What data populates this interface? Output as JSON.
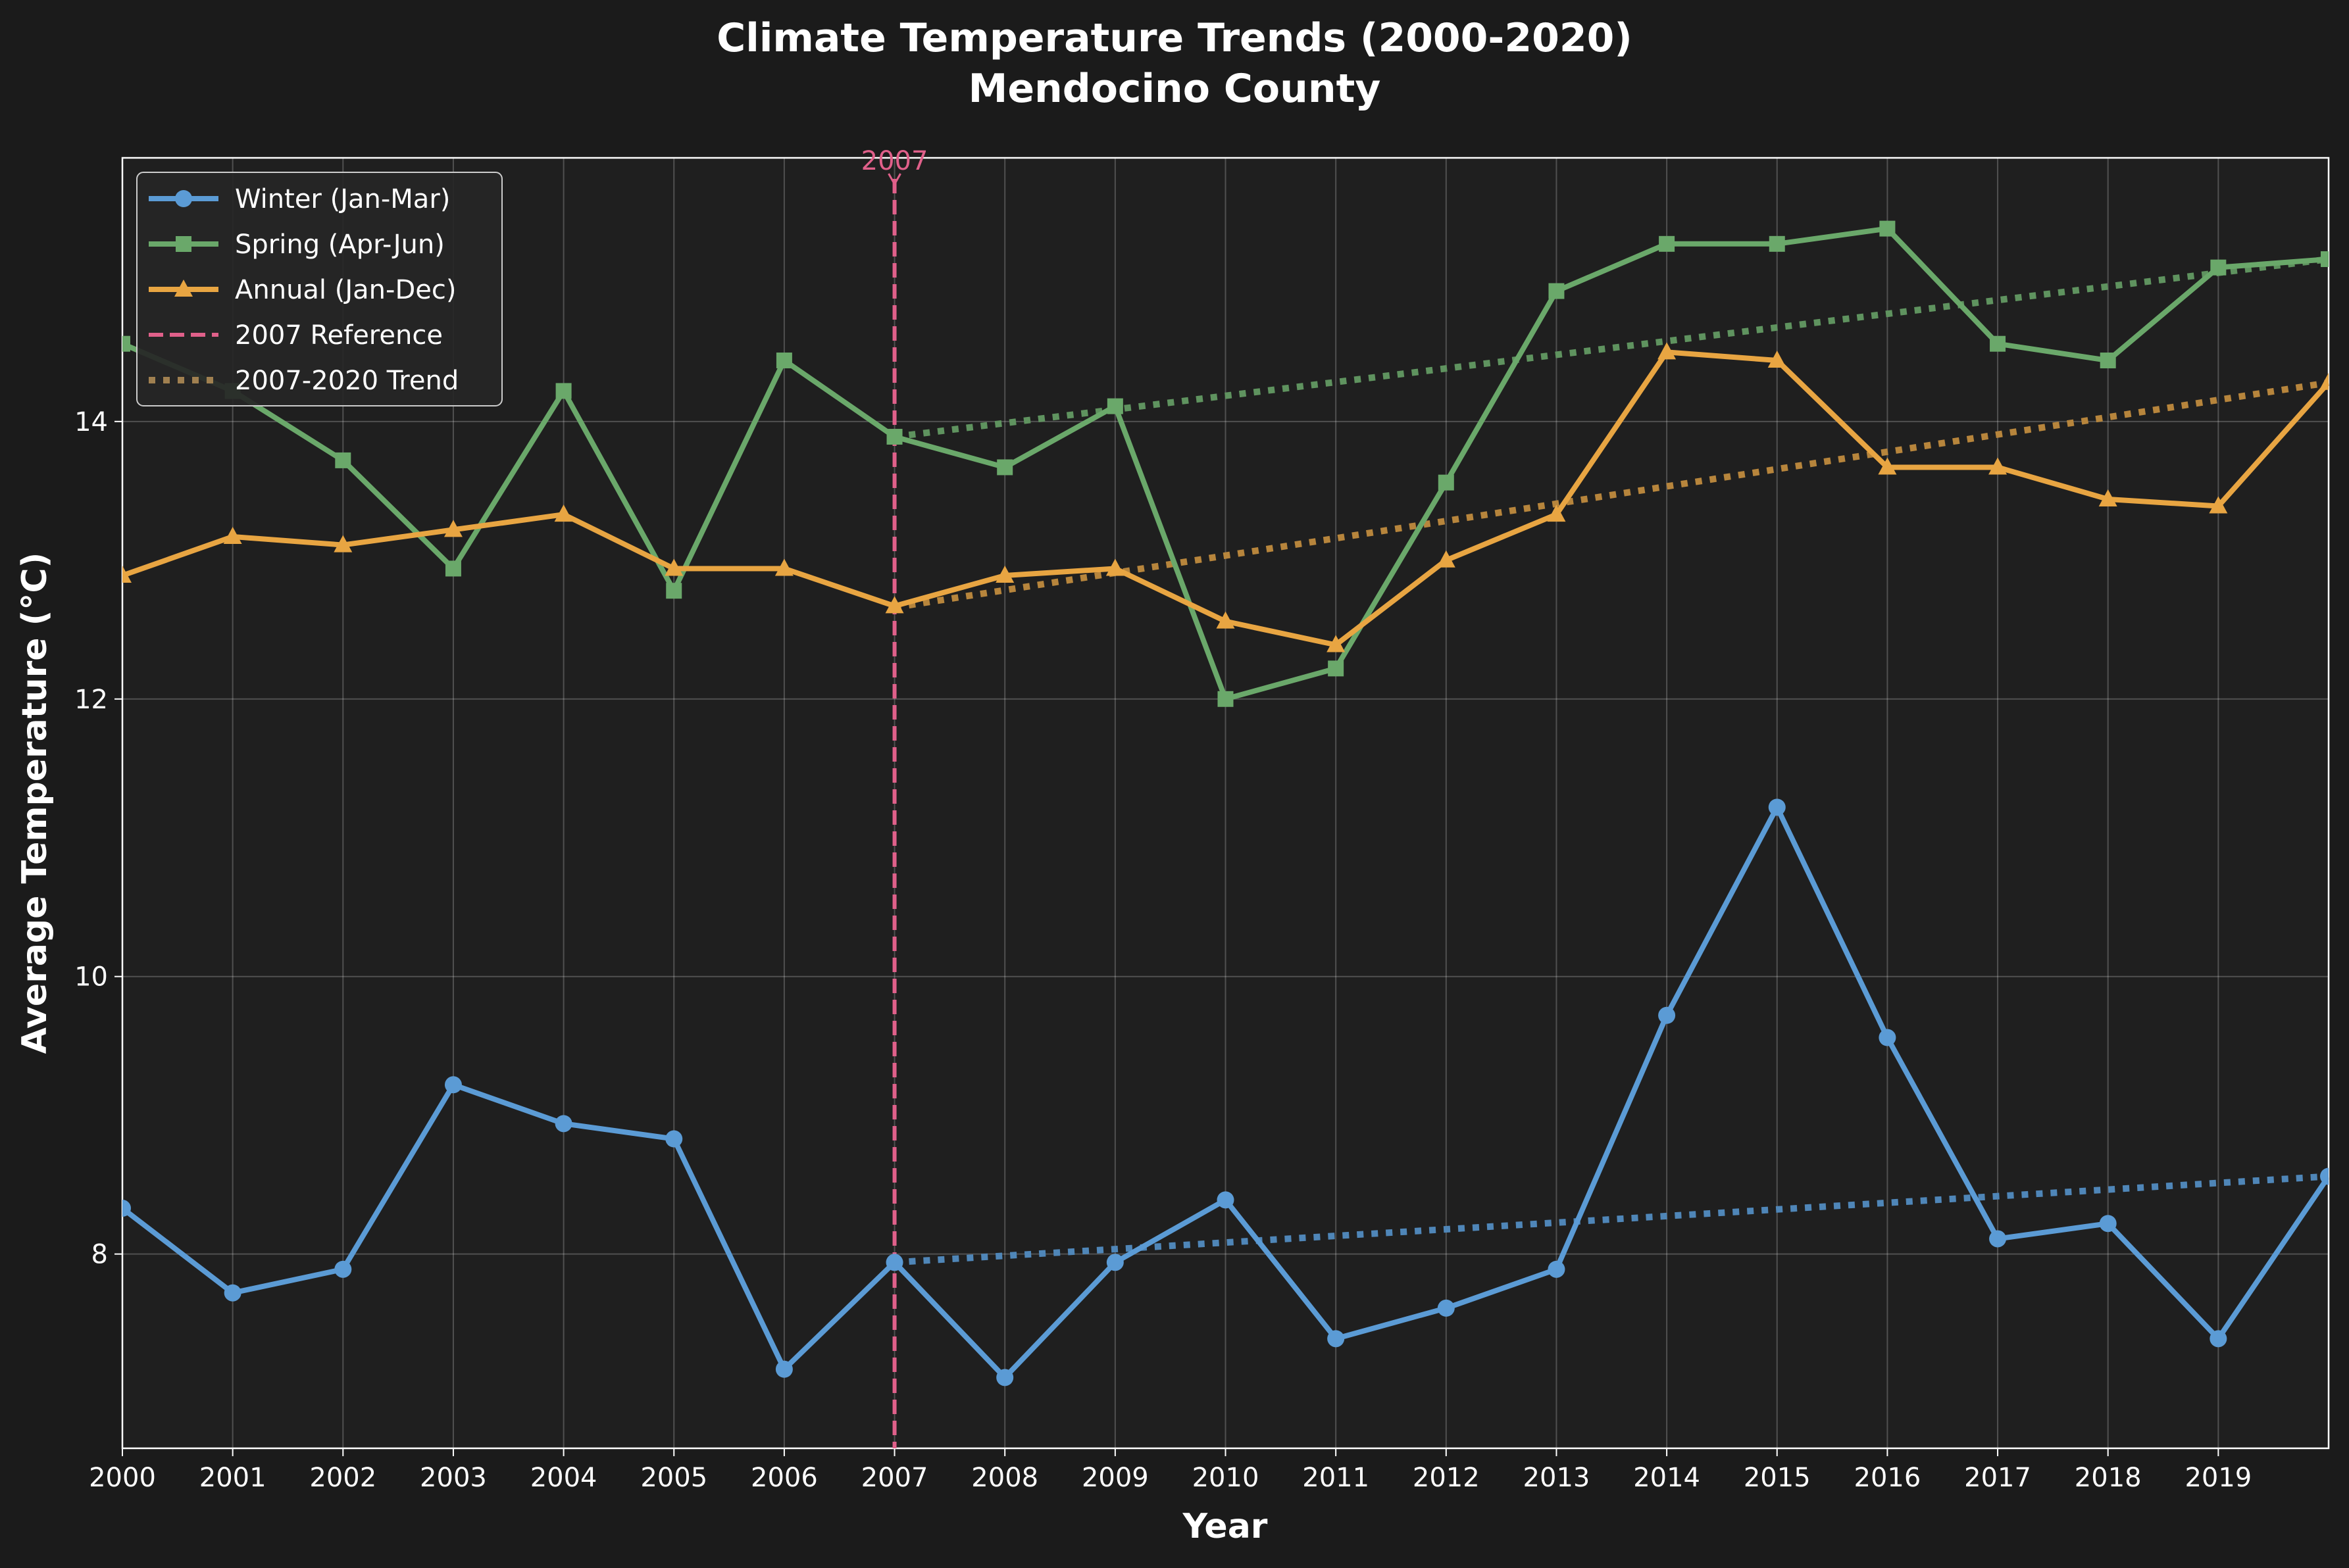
{
  "chart_data": {
    "type": "line",
    "title_line1": "Climate Temperature Trends (2000-2020)",
    "title_line2": "Mendocino County",
    "xlabel": "Year",
    "ylabel": "Average Temperature (°C)",
    "xlim": [
      2000,
      2020
    ],
    "ylim": [
      6.6,
      15.9
    ],
    "x": [
      2000,
      2001,
      2002,
      2003,
      2004,
      2005,
      2006,
      2007,
      2008,
      2009,
      2010,
      2011,
      2012,
      2013,
      2014,
      2015,
      2016,
      2017,
      2018,
      2019,
      2020
    ],
    "x_ticks": [
      2000,
      2001,
      2002,
      2003,
      2004,
      2005,
      2006,
      2007,
      2008,
      2009,
      2010,
      2011,
      2012,
      2013,
      2014,
      2015,
      2016,
      2017,
      2018,
      2019
    ],
    "y_ticks": [
      8,
      10,
      12,
      14
    ],
    "grid": true,
    "legend_position": "top-left",
    "series": [
      {
        "name": "Winter (Jan-Mar)",
        "color": "#5b9bd5",
        "marker": "circle",
        "values": [
          8.33,
          7.72,
          7.89,
          9.22,
          8.94,
          8.83,
          7.17,
          7.94,
          7.11,
          7.94,
          8.39,
          7.39,
          7.61,
          7.89,
          9.72,
          11.22,
          9.56,
          8.11,
          8.22,
          7.39,
          8.56
        ]
      },
      {
        "name": "Spring (Apr-Jun)",
        "color": "#6aa86a",
        "marker": "square",
        "values": [
          14.56,
          14.22,
          13.72,
          12.94,
          14.22,
          12.78,
          14.44,
          13.89,
          13.67,
          14.11,
          12.0,
          12.22,
          13.56,
          14.94,
          15.28,
          15.28,
          15.39,
          14.56,
          14.44,
          15.11,
          15.17
        ]
      },
      {
        "name": "Annual (Jan-Dec)",
        "color": "#e8a542",
        "marker": "triangle",
        "values": [
          12.89,
          13.17,
          13.11,
          13.22,
          13.33,
          12.94,
          12.94,
          12.67,
          12.89,
          12.94,
          12.56,
          12.39,
          13.0,
          13.33,
          14.5,
          14.44,
          13.67,
          13.67,
          13.44,
          13.39,
          14.28
        ]
      }
    ],
    "reference_line": {
      "name": "2007 Reference",
      "x": 2007,
      "label": "2007",
      "color": "#e0608a"
    },
    "trend": {
      "name": "2007-2020 Trend",
      "x_range": [
        2007,
        2020
      ],
      "legend_color": "#a08050",
      "lines": [
        {
          "series": "Winter (Jan-Mar)",
          "color": "#4f86b8",
          "y_start": 7.94,
          "y_end": 8.56
        },
        {
          "series": "Spring (Apr-Jun)",
          "color": "#5f935f",
          "y_start": 13.89,
          "y_end": 15.17
        },
        {
          "series": "Annual (Jan-Dec)",
          "color": "#b7853c",
          "y_start": 12.66,
          "y_end": 14.28
        }
      ]
    }
  }
}
